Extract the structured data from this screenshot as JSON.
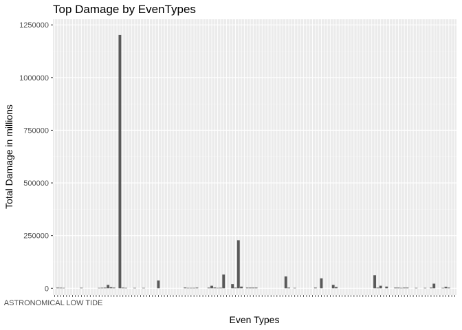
{
  "chart_data": {
    "type": "bar",
    "title": "Top Damage by EvenTypes",
    "xlabel": "Even Types",
    "ylabel": "Total Damage in millions",
    "ylim": [
      0,
      1260000
    ],
    "yticks": [
      0,
      250000,
      500000,
      750000,
      1000000,
      1250000
    ],
    "ytick_labels": [
      "0",
      "250000",
      "500000",
      "750000",
      "1000000",
      "1250000"
    ],
    "first_category": "ASTRONOMICAL LOW TIDE",
    "grid": true,
    "legend": "none",
    "colors": {
      "panel": "#ebebeb",
      "grid_major": "#ffffff",
      "grid_minor": "#f4f4f4",
      "bar": "#595959",
      "tick": "#333333"
    },
    "values": [
      0,
      3000,
      2500,
      2000,
      0,
      0,
      0,
      0,
      0,
      2500,
      0,
      0,
      0,
      0,
      0,
      2000,
      2500,
      3000,
      16000,
      5000,
      3000,
      0,
      1202000,
      3000,
      2000,
      0,
      0,
      2000,
      0,
      0,
      2000,
      0,
      0,
      0,
      0,
      37000,
      0,
      0,
      0,
      0,
      0,
      0,
      0,
      0,
      3500,
      2000,
      2000,
      2000,
      3000,
      0,
      0,
      0,
      3000,
      12000,
      3500,
      2000,
      2500,
      65000,
      0,
      0,
      20000,
      3000,
      228000,
      8000,
      0,
      3000,
      3000,
      3000,
      3000,
      0,
      0,
      0,
      0,
      0,
      0,
      0,
      0,
      0,
      56000,
      3000,
      0,
      2000,
      0,
      0,
      0,
      0,
      0,
      0,
      3000,
      0,
      47000,
      0,
      0,
      0,
      16000,
      6000,
      0,
      0,
      0,
      0,
      0,
      0,
      0,
      0,
      0,
      0,
      0,
      0,
      62000,
      3000,
      12000,
      0,
      8000,
      0,
      0,
      3000,
      3000,
      2000,
      3000,
      3000,
      0,
      0,
      2000,
      0,
      0,
      2000,
      0,
      3000,
      22000,
      0,
      0,
      2000,
      7000,
      3000,
      0,
      0
    ]
  }
}
